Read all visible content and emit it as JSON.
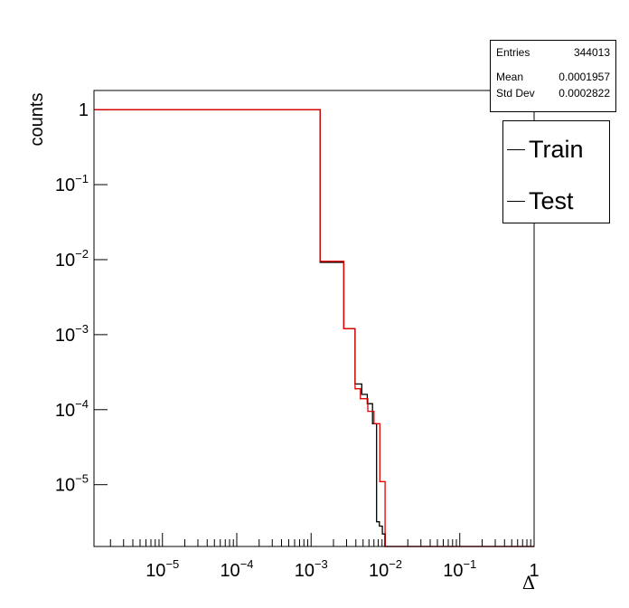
{
  "chart_data": {
    "type": "histogram-step",
    "xlabel": "Δ",
    "ylabel": "counts",
    "xscale": "log",
    "yscale": "log",
    "xlim": [
      1.2e-06,
      1.0
    ],
    "ylim": [
      1.5e-06,
      1.8
    ],
    "x_tick_labels": [
      {
        "value": 1e-05,
        "base": "10",
        "exp": "−5"
      },
      {
        "value": 0.0001,
        "base": "10",
        "exp": "−4"
      },
      {
        "value": 0.001,
        "base": "10",
        "exp": "−3"
      },
      {
        "value": 0.01,
        "base": "10",
        "exp": "−2"
      },
      {
        "value": 0.1,
        "base": "10",
        "exp": "−1"
      },
      {
        "value": 1,
        "base": "1",
        "exp": ""
      }
    ],
    "y_tick_labels": [
      {
        "value": 1,
        "base": "1",
        "exp": ""
      },
      {
        "value": 0.1,
        "base": "10",
        "exp": "−1"
      },
      {
        "value": 0.01,
        "base": "10",
        "exp": "−2"
      },
      {
        "value": 0.001,
        "base": "10",
        "exp": "−3"
      },
      {
        "value": 0.0001,
        "base": "10",
        "exp": "−4"
      },
      {
        "value": 1e-05,
        "base": "10",
        "exp": "−5"
      }
    ],
    "series": [
      {
        "name": "Train",
        "color": "#000000",
        "edges": [
          1.2e-06,
          0.00132,
          0.00275,
          0.0039,
          0.0048,
          0.0057,
          0.0067,
          0.0076,
          0.0083,
          0.0091,
          0.0098,
          0.0108
        ],
        "values": [
          1.0,
          0.0092,
          0.0012,
          0.00022,
          0.00016,
          0.00012,
          6.5e-05,
          3.2e-06,
          2.8e-06,
          2.2e-06,
          1.5e-06
        ]
      },
      {
        "name": "Test",
        "color": "#e00000",
        "edges": [
          1.2e-06,
          0.00132,
          0.00275,
          0.0039,
          0.0046,
          0.0058,
          0.007,
          0.0084,
          0.0099,
          0.0125
        ],
        "values": [
          1.0,
          0.0095,
          0.0012,
          0.00019,
          0.00014,
          9.5e-05,
          6.5e-05,
          1.1e-05,
          1.5e-06
        ]
      }
    ],
    "stats": {
      "entries_label": "Entries",
      "entries_value": "344013",
      "mean_label": "Mean",
      "mean_value": "0.0001957",
      "std_label": "Std Dev",
      "std_value": "0.0002822"
    },
    "legend": [
      "Train",
      "Test"
    ],
    "legend_position": "top-right"
  }
}
